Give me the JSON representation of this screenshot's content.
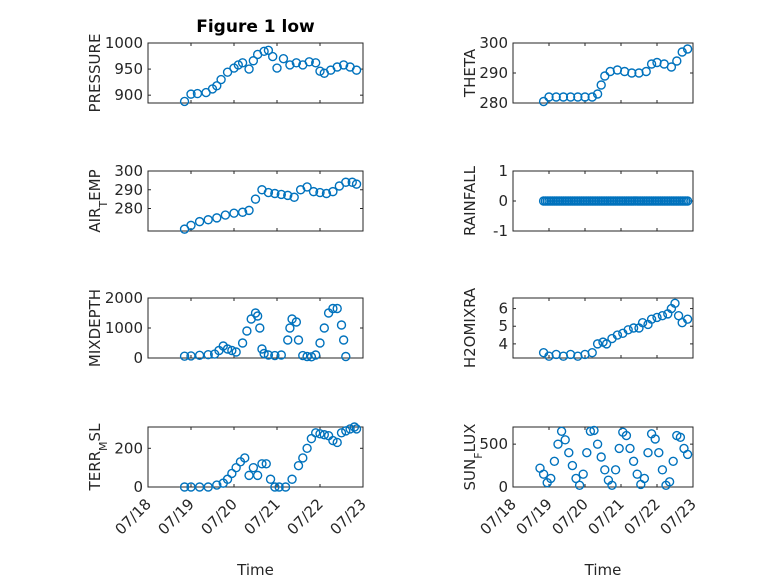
{
  "figure_title": "Figure 1 low",
  "chart_data": [
    {
      "type": "scatter",
      "id": "pressure",
      "title": "Figure 1 low",
      "ylabel": "PRESSURE",
      "ylabel_parts": [
        {
          "t": "PRESSURE",
          "sub": false
        }
      ],
      "xlim": [
        0,
        5
      ],
      "ylim": [
        885,
        1000
      ],
      "yticks": [
        900,
        950,
        1000
      ],
      "yticklabels": [
        "900",
        "950",
        "1000"
      ],
      "xtick_labels_shown": false,
      "points": [
        [
          0.85,
          888
        ],
        [
          1.0,
          902
        ],
        [
          1.15,
          903
        ],
        [
          1.35,
          905
        ],
        [
          1.5,
          912
        ],
        [
          1.6,
          918
        ],
        [
          1.7,
          930
        ],
        [
          1.85,
          944
        ],
        [
          2.0,
          952
        ],
        [
          2.1,
          958
        ],
        [
          2.2,
          962
        ],
        [
          2.35,
          950
        ],
        [
          2.45,
          966
        ],
        [
          2.55,
          978
        ],
        [
          2.7,
          984
        ],
        [
          2.8,
          986
        ],
        [
          2.9,
          974
        ],
        [
          3.0,
          952
        ],
        [
          3.15,
          970
        ],
        [
          3.3,
          958
        ],
        [
          3.45,
          962
        ],
        [
          3.6,
          958
        ],
        [
          3.75,
          964
        ],
        [
          3.9,
          962
        ],
        [
          4.0,
          946
        ],
        [
          4.1,
          942
        ],
        [
          4.25,
          948
        ],
        [
          4.4,
          954
        ],
        [
          4.55,
          958
        ],
        [
          4.7,
          954
        ],
        [
          4.85,
          948
        ]
      ]
    },
    {
      "type": "scatter",
      "id": "theta",
      "ylabel": "THETA",
      "ylabel_parts": [
        {
          "t": "THETA",
          "sub": false
        }
      ],
      "xlim": [
        0,
        5
      ],
      "ylim": [
        280,
        300
      ],
      "yticks": [
        280,
        290,
        300
      ],
      "yticklabels": [
        "280",
        "290",
        "300"
      ],
      "xtick_labels_shown": false,
      "points": [
        [
          0.85,
          280.5
        ],
        [
          1.0,
          282
        ],
        [
          1.2,
          282
        ],
        [
          1.4,
          282
        ],
        [
          1.6,
          282
        ],
        [
          1.8,
          282
        ],
        [
          2.0,
          282
        ],
        [
          2.2,
          282
        ],
        [
          2.35,
          283
        ],
        [
          2.45,
          286
        ],
        [
          2.55,
          289
        ],
        [
          2.7,
          290.5
        ],
        [
          2.9,
          291
        ],
        [
          3.1,
          290.5
        ],
        [
          3.3,
          290
        ],
        [
          3.5,
          290
        ],
        [
          3.7,
          290.5
        ],
        [
          3.85,
          293
        ],
        [
          4.0,
          293.5
        ],
        [
          4.2,
          293
        ],
        [
          4.4,
          292
        ],
        [
          4.55,
          294
        ],
        [
          4.7,
          297
        ],
        [
          4.85,
          298
        ]
      ]
    },
    {
      "type": "scatter",
      "id": "air_temp",
      "ylabel": "AIR_TEMP",
      "ylabel_parts": [
        {
          "t": "AIR",
          "sub": false
        },
        {
          "t": "T",
          "sub": true
        },
        {
          "t": "EMP",
          "sub": false
        }
      ],
      "xlim": [
        0,
        5
      ],
      "ylim": [
        268,
        300
      ],
      "yticks": [
        280,
        290,
        300
      ],
      "yticklabels": [
        "280",
        "290",
        "300"
      ],
      "xtick_labels_shown": false,
      "points": [
        [
          0.85,
          269
        ],
        [
          1.0,
          271
        ],
        [
          1.2,
          273
        ],
        [
          1.4,
          274
        ],
        [
          1.6,
          275
        ],
        [
          1.8,
          276.5
        ],
        [
          2.0,
          277.5
        ],
        [
          2.2,
          278
        ],
        [
          2.35,
          279
        ],
        [
          2.5,
          285
        ],
        [
          2.65,
          290
        ],
        [
          2.8,
          288.5
        ],
        [
          2.95,
          288
        ],
        [
          3.1,
          287.5
        ],
        [
          3.25,
          287
        ],
        [
          3.4,
          286
        ],
        [
          3.55,
          290
        ],
        [
          3.7,
          291.5
        ],
        [
          3.85,
          289
        ],
        [
          4.0,
          288.5
        ],
        [
          4.15,
          288
        ],
        [
          4.3,
          289
        ],
        [
          4.45,
          292
        ],
        [
          4.6,
          294
        ],
        [
          4.75,
          294
        ],
        [
          4.85,
          293
        ]
      ]
    },
    {
      "type": "scatter",
      "id": "rainfall",
      "ylabel": "RAINFALL",
      "ylabel_parts": [
        {
          "t": "RAINFALL",
          "sub": false
        }
      ],
      "xlim": [
        0,
        5
      ],
      "ylim": [
        -1,
        1
      ],
      "yticks": [
        -1,
        0,
        1
      ],
      "yticklabels": [
        "-1",
        "0",
        "1"
      ],
      "xtick_labels_shown": false,
      "constant_series": {
        "y": 0,
        "x_start": 0.85,
        "x_end": 4.85,
        "step": 0.05
      }
    },
    {
      "type": "scatter",
      "id": "mixdepth",
      "ylabel": "MIXDEPTH",
      "ylabel_parts": [
        {
          "t": "MIXDEPTH",
          "sub": false
        }
      ],
      "xlim": [
        0,
        5
      ],
      "ylim": [
        0,
        2000
      ],
      "yticks": [
        0,
        1000,
        2000
      ],
      "yticklabels": [
        "0",
        "1000",
        "2000"
      ],
      "xtick_labels_shown": false,
      "points": [
        [
          0.85,
          60
        ],
        [
          1.0,
          70
        ],
        [
          1.2,
          90
        ],
        [
          1.4,
          110
        ],
        [
          1.55,
          130
        ],
        [
          1.65,
          250
        ],
        [
          1.75,
          400
        ],
        [
          1.85,
          300
        ],
        [
          1.95,
          250
        ],
        [
          2.05,
          200
        ],
        [
          2.2,
          500
        ],
        [
          2.3,
          900
        ],
        [
          2.4,
          1300
        ],
        [
          2.5,
          1500
        ],
        [
          2.55,
          1400
        ],
        [
          2.6,
          1000
        ],
        [
          2.65,
          300
        ],
        [
          2.7,
          150
        ],
        [
          2.8,
          100
        ],
        [
          2.95,
          80
        ],
        [
          3.1,
          100
        ],
        [
          3.25,
          600
        ],
        [
          3.3,
          1000
        ],
        [
          3.35,
          1300
        ],
        [
          3.45,
          1200
        ],
        [
          3.5,
          600
        ],
        [
          3.6,
          80
        ],
        [
          3.7,
          50
        ],
        [
          3.8,
          40
        ],
        [
          3.9,
          100
        ],
        [
          4.0,
          500
        ],
        [
          4.1,
          1000
        ],
        [
          4.2,
          1500
        ],
        [
          4.3,
          1650
        ],
        [
          4.4,
          1650
        ],
        [
          4.5,
          1100
        ],
        [
          4.55,
          600
        ],
        [
          4.6,
          50
        ]
      ]
    },
    {
      "type": "scatter",
      "id": "h2omixra",
      "ylabel": "H2OMIXRA",
      "ylabel_parts": [
        {
          "t": "H2OMIXRA",
          "sub": false
        }
      ],
      "xlim": [
        0,
        5
      ],
      "ylim": [
        3.2,
        6.6
      ],
      "yticks": [
        4,
        5,
        6
      ],
      "yticklabels": [
        "4",
        "5",
        "6"
      ],
      "xtick_labels_shown": false,
      "points": [
        [
          0.85,
          3.5
        ],
        [
          1.0,
          3.3
        ],
        [
          1.2,
          3.4
        ],
        [
          1.4,
          3.3
        ],
        [
          1.6,
          3.4
        ],
        [
          1.8,
          3.3
        ],
        [
          2.0,
          3.4
        ],
        [
          2.2,
          3.5
        ],
        [
          2.35,
          4.0
        ],
        [
          2.5,
          4.1
        ],
        [
          2.6,
          4.0
        ],
        [
          2.75,
          4.3
        ],
        [
          2.9,
          4.5
        ],
        [
          3.05,
          4.6
        ],
        [
          3.2,
          4.8
        ],
        [
          3.35,
          4.9
        ],
        [
          3.5,
          4.9
        ],
        [
          3.6,
          5.2
        ],
        [
          3.75,
          5.1
        ],
        [
          3.85,
          5.4
        ],
        [
          4.0,
          5.5
        ],
        [
          4.15,
          5.6
        ],
        [
          4.3,
          5.7
        ],
        [
          4.4,
          6.0
        ],
        [
          4.5,
          6.3
        ],
        [
          4.6,
          5.6
        ],
        [
          4.7,
          5.2
        ],
        [
          4.85,
          5.4
        ]
      ]
    },
    {
      "type": "scatter",
      "id": "terr_msl",
      "ylabel": "TERR_MSL",
      "ylabel_parts": [
        {
          "t": "TERR",
          "sub": false
        },
        {
          "t": "M",
          "sub": true
        },
        {
          "t": "SL",
          "sub": false
        }
      ],
      "xlim": [
        0,
        5
      ],
      "ylim": [
        0,
        310
      ],
      "yticks": [
        0,
        200
      ],
      "yticklabels": [
        "0",
        "200"
      ],
      "xtick_labels_shown": true,
      "xticks": [
        0,
        1,
        2,
        3,
        4,
        5
      ],
      "xticklabels": [
        "07/18",
        "07/19",
        "07/20",
        "07/21",
        "07/22",
        "07/23"
      ],
      "xlabel": "Time",
      "points": [
        [
          0.85,
          0
        ],
        [
          1.0,
          0
        ],
        [
          1.2,
          0
        ],
        [
          1.4,
          0
        ],
        [
          1.6,
          10
        ],
        [
          1.75,
          20
        ],
        [
          1.85,
          40
        ],
        [
          1.95,
          70
        ],
        [
          2.05,
          100
        ],
        [
          2.15,
          130
        ],
        [
          2.25,
          150
        ],
        [
          2.35,
          60
        ],
        [
          2.45,
          100
        ],
        [
          2.55,
          60
        ],
        [
          2.65,
          120
        ],
        [
          2.75,
          120
        ],
        [
          2.85,
          40
        ],
        [
          2.95,
          0
        ],
        [
          3.05,
          0
        ],
        [
          3.2,
          0
        ],
        [
          3.35,
          40
        ],
        [
          3.5,
          110
        ],
        [
          3.6,
          150
        ],
        [
          3.7,
          200
        ],
        [
          3.8,
          250
        ],
        [
          3.9,
          280
        ],
        [
          4.0,
          275
        ],
        [
          4.1,
          270
        ],
        [
          4.2,
          265
        ],
        [
          4.3,
          240
        ],
        [
          4.4,
          230
        ],
        [
          4.5,
          280
        ],
        [
          4.6,
          290
        ],
        [
          4.7,
          300
        ],
        [
          4.8,
          310
        ],
        [
          4.85,
          300
        ]
      ]
    },
    {
      "type": "scatter",
      "id": "sun_flux",
      "ylabel": "SUN_FLUX",
      "ylabel_parts": [
        {
          "t": "SUN",
          "sub": false
        },
        {
          "t": "F",
          "sub": true
        },
        {
          "t": "LUX",
          "sub": false
        }
      ],
      "xlim": [
        0,
        5
      ],
      "ylim": [
        0,
        700
      ],
      "yticks": [
        0,
        500
      ],
      "yticklabels": [
        "0",
        "500"
      ],
      "xtick_labels_shown": true,
      "xticks": [
        0,
        1,
        2,
        3,
        4,
        5
      ],
      "xticklabels": [
        "07/18",
        "07/19",
        "07/20",
        "07/21",
        "07/22",
        "07/23"
      ],
      "xlabel": "Time",
      "points": [
        [
          0.75,
          220
        ],
        [
          0.85,
          150
        ],
        [
          0.95,
          50
        ],
        [
          1.05,
          100
        ],
        [
          1.15,
          300
        ],
        [
          1.25,
          500
        ],
        [
          1.35,
          650
        ],
        [
          1.45,
          550
        ],
        [
          1.55,
          400
        ],
        [
          1.65,
          250
        ],
        [
          1.75,
          100
        ],
        [
          1.85,
          20
        ],
        [
          1.95,
          150
        ],
        [
          2.05,
          400
        ],
        [
          2.15,
          650
        ],
        [
          2.25,
          660
        ],
        [
          2.35,
          500
        ],
        [
          2.45,
          350
        ],
        [
          2.55,
          200
        ],
        [
          2.65,
          80
        ],
        [
          2.75,
          20
        ],
        [
          2.85,
          200
        ],
        [
          2.95,
          450
        ],
        [
          3.05,
          640
        ],
        [
          3.15,
          600
        ],
        [
          3.25,
          450
        ],
        [
          3.35,
          300
        ],
        [
          3.45,
          150
        ],
        [
          3.55,
          30
        ],
        [
          3.65,
          100
        ],
        [
          3.75,
          400
        ],
        [
          3.85,
          620
        ],
        [
          3.95,
          560
        ],
        [
          4.05,
          400
        ],
        [
          4.15,
          200
        ],
        [
          4.25,
          20
        ],
        [
          4.35,
          60
        ],
        [
          4.45,
          300
        ],
        [
          4.55,
          600
        ],
        [
          4.65,
          580
        ],
        [
          4.75,
          450
        ],
        [
          4.85,
          380
        ]
      ]
    }
  ]
}
